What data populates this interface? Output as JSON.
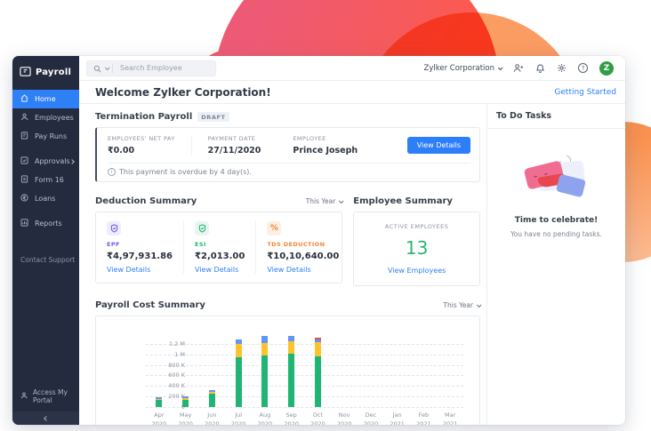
{
  "app": {
    "name": "Payroll"
  },
  "sidebar": {
    "items": [
      {
        "label": "Home",
        "active": true
      },
      {
        "label": "Employees",
        "active": false
      },
      {
        "label": "Pay Runs",
        "active": false
      },
      {
        "label": "Approvals",
        "active": false,
        "has_submenu": true
      },
      {
        "label": "Form 16",
        "active": false
      },
      {
        "label": "Loans",
        "active": false
      },
      {
        "label": "Reports",
        "active": false
      }
    ],
    "support_label": "Contact Support",
    "portal_label": "Access My Portal"
  },
  "topbar": {
    "search_placeholder": "Search Employee",
    "org_name": "Zylker Corporation",
    "avatar_letter": "Z",
    "avatar_color": "#2f9e44",
    "icon_names": [
      "search-icon",
      "user-add-icon",
      "bell-icon",
      "gear-icon",
      "help-icon"
    ]
  },
  "header": {
    "welcome": "Welcome Zylker Corporation!",
    "getting_started": "Getting Started"
  },
  "termination": {
    "title": "Termination Payroll",
    "badge": "DRAFT",
    "fields": [
      {
        "label": "EMPLOYEES' NET PAY",
        "value": "₹0.00"
      },
      {
        "label": "PAYMENT DATE",
        "value": "27/11/2020"
      },
      {
        "label": "EMPLOYEE",
        "value": "Prince Joseph"
      }
    ],
    "button": "View Details",
    "note": "This payment is overdue by 4 day(s)."
  },
  "deduction": {
    "title": "Deduction Summary",
    "filter": "This Year",
    "items": [
      {
        "label": "EPF",
        "value": "₹4,97,931.86",
        "link": "View Details",
        "color": "#6e62e5",
        "icon": "shield-check-icon"
      },
      {
        "label": "ESI",
        "value": "₹2,013.00",
        "link": "View Details",
        "color": "#2bb673",
        "icon": "shield-check-icon"
      },
      {
        "label": "TDS DEDUCTION",
        "value": "₹10,10,640.00",
        "link": "View Details",
        "color": "#f0863a",
        "icon": "percent-icon"
      }
    ]
  },
  "employee_summary": {
    "title": "Employee Summary",
    "label": "ACTIVE EMPLOYEES",
    "count": "13",
    "count_color": "#2bb673",
    "link": "View Employees"
  },
  "payroll_cost": {
    "title": "Payroll Cost Summary",
    "filter": "This Year"
  },
  "todo": {
    "title": "To Do Tasks",
    "heading": "Time to celebrate!",
    "subtext": "You have no pending tasks."
  },
  "chart_data": {
    "type": "bar",
    "stacked": true,
    "title": "Payroll Cost Summary",
    "xlabel": "",
    "ylabel": "",
    "categories": [
      "Apr 2020",
      "May 2020",
      "Jun 2020",
      "Jul 2020",
      "Aug 2020",
      "Sep 2020",
      "Oct 2020",
      "Nov 2020",
      "Dec 2020",
      "Jan 2021",
      "Feb 2021",
      "Mar 2021"
    ],
    "series": [
      {
        "name": "green-segment",
        "color": "#21b573",
        "values": [
          135000,
          140000,
          255000,
          945000,
          985000,
          1005000,
          960000,
          0,
          0,
          0,
          0,
          0
        ]
      },
      {
        "name": "yellow-segment",
        "color": "#fcc32c",
        "values": [
          25000,
          30000,
          35000,
          255000,
          235000,
          245000,
          265000,
          0,
          0,
          0,
          0,
          0
        ]
      },
      {
        "name": "blue-segment",
        "color": "#6295f9",
        "values": [
          30000,
          30000,
          30000,
          90000,
          130000,
          100000,
          65000,
          0,
          0,
          0,
          0,
          0
        ]
      },
      {
        "name": "red-segment",
        "color": "#e55050",
        "values": [
          0,
          0,
          0,
          0,
          0,
          0,
          20000,
          0,
          0,
          0,
          0,
          0
        ]
      }
    ],
    "y_ticks": [
      {
        "label": "0",
        "value": 0
      },
      {
        "label": "200 K",
        "value": 200000
      },
      {
        "label": "400 K",
        "value": 400000
      },
      {
        "label": "600 K",
        "value": 600000
      },
      {
        "label": "800 K",
        "value": 800000
      },
      {
        "label": "1 M",
        "value": 1000000
      },
      {
        "label": "1.2 M",
        "value": 1200000
      }
    ],
    "ylim": [
      0,
      1450000
    ],
    "grid": "dashed-horizontal",
    "legend_position": "none-visible"
  }
}
